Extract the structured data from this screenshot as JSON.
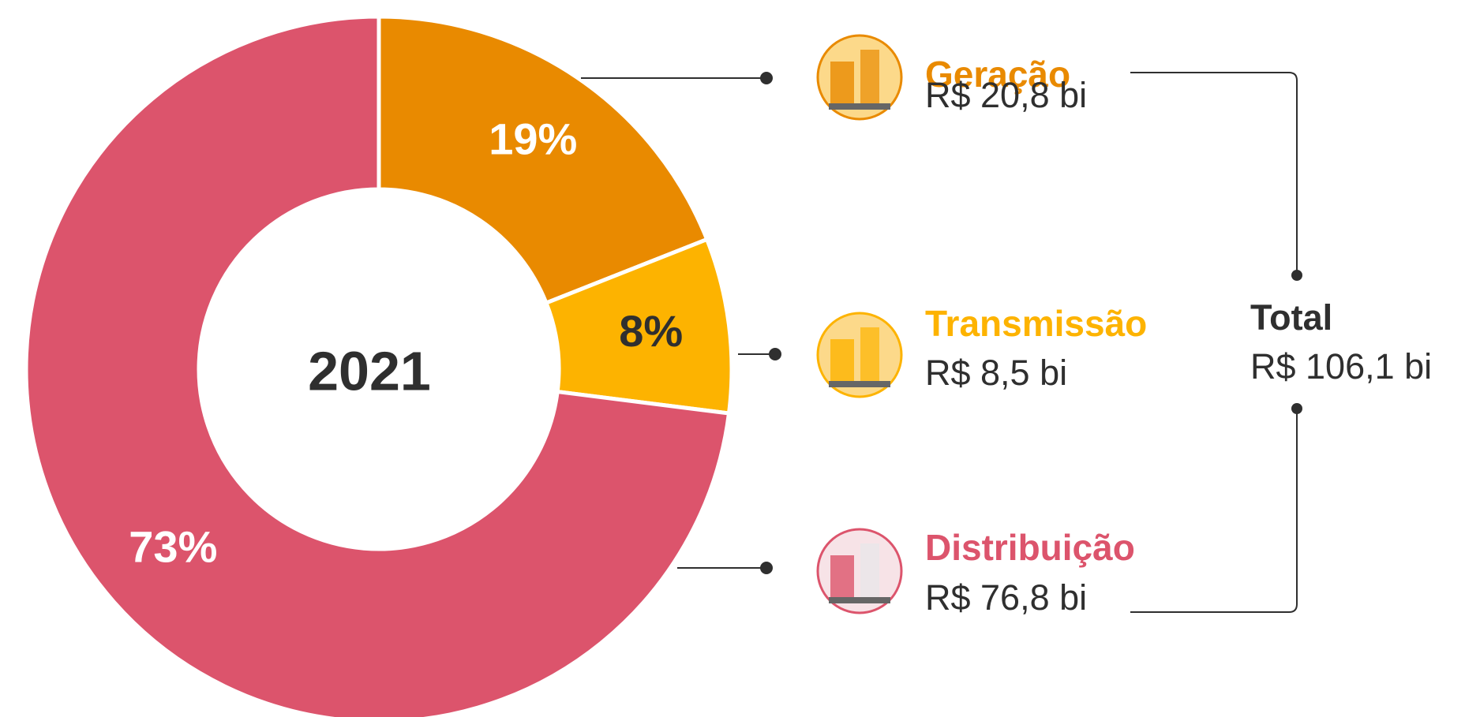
{
  "chart_data": {
    "type": "donut",
    "center_label": "2021",
    "categories": [
      "Geração",
      "Transmissão",
      "Distribuição"
    ],
    "values": [
      19,
      8,
      73
    ],
    "value_labels": [
      "19%",
      "8%",
      "73%"
    ],
    "amounts": [
      "R$ 20,8 bi",
      "R$ 8,5 bi",
      "R$ 76,8 bi"
    ],
    "colors": [
      "#e98a00",
      "#fdb300",
      "#dc546c"
    ],
    "total_label": "Total",
    "total_amount": "R$ 106,1 bi"
  }
}
